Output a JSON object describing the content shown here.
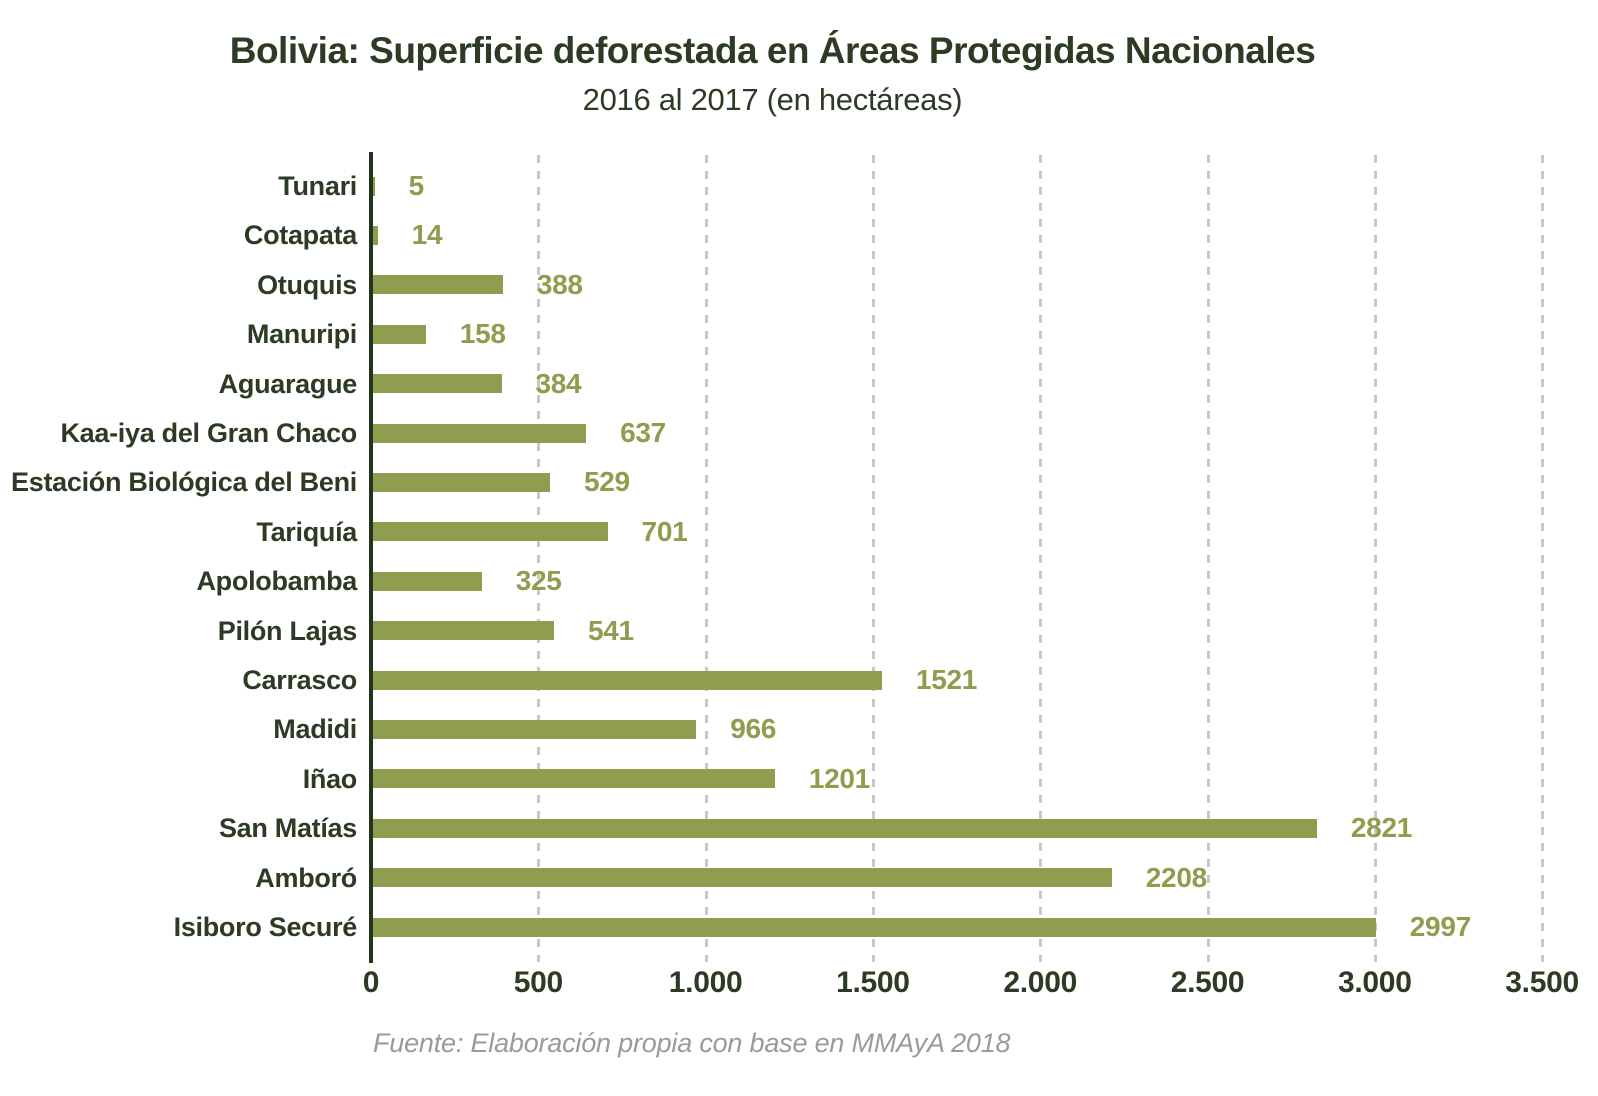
{
  "title": "Bolivia: Superficie deforestada en Áreas Protegidas Nacionales",
  "subtitle": "2016 al 2017 (en hectáreas)",
  "source": "Fuente: Elaboración propia con base en MMAyA 2018",
  "colors": {
    "bar": "#8f9d4f",
    "value_label": "#8f9d4f",
    "text_dark_green": "#2d3b24",
    "axis": "#25331e",
    "gridline": "#c9c9c9",
    "source_gray": "#9a9a9a",
    "background": "#ffffff"
  },
  "chart_data": {
    "type": "bar",
    "orientation": "horizontal",
    "title": "Bolivia: Superficie deforestada en Áreas Protegidas Nacionales",
    "subtitle": "2016 al 2017 (en hectáreas)",
    "xlabel": "",
    "ylabel": "",
    "categories": [
      "Tunari",
      "Cotapata",
      "Otuquis",
      "Manuripi",
      "Aguarague",
      "Kaa-iya del Gran Chaco",
      "Estación Biológica del Beni",
      "Tariquía",
      "Apolobamba",
      "Pilón Lajas",
      "Carrasco",
      "Madidi",
      "Iñao",
      "San Matías",
      "Amboró",
      "Isiboro Securé"
    ],
    "values": [
      5,
      14,
      388,
      158,
      384,
      637,
      529,
      701,
      325,
      541,
      1521,
      966,
      1201,
      2821,
      2208,
      2997
    ],
    "value_labels_shown": true,
    "xlim": [
      0,
      3500
    ],
    "xtick_values": [
      0,
      500,
      1000,
      1500,
      2000,
      2500,
      3000,
      3500
    ],
    "xtick_labels": [
      "0",
      "500",
      "1.000",
      "1.500",
      "2.000",
      "2.500",
      "3.000",
      "3.500"
    ],
    "grid": "vertical-dashed",
    "legend": "none",
    "source_note": "Fuente: Elaboración propia con base en MMAyA 2018"
  }
}
